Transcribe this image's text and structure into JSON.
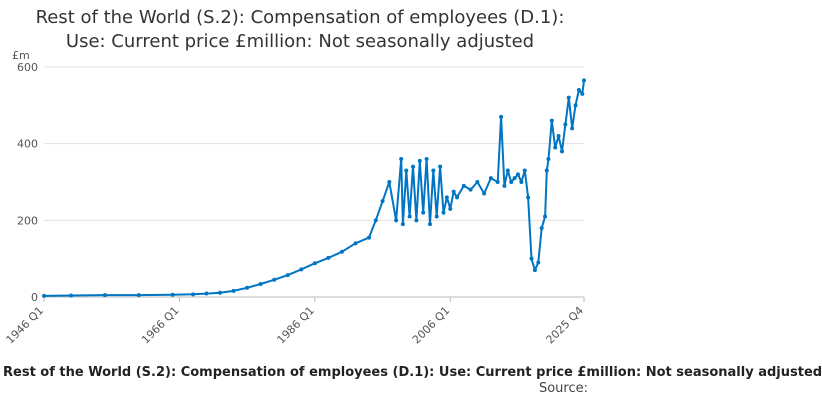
{
  "title_line1": "Rest of the World (S.2): Compensation of employees (D.1):",
  "title_line2": "Use: Current price £million: Not seasonally adjusted",
  "footer_text": "Rest of the World (S.2): Compensation of employees (D.1): Use: Current price £million: Not seasonally adjusted",
  "source_label": "Source:",
  "colors": {
    "series": "#0075c4",
    "grid": "#e0e0e0",
    "axis": "#555555"
  },
  "chart_data": {
    "type": "line",
    "title": "Rest of the World (S.2): Compensation of employees (D.1): Use: Current price £million: Not seasonally adjusted",
    "ylabel": "£m",
    "xlabel": "",
    "ylim": [
      0,
      600
    ],
    "xlim": [
      1946.0,
      2025.75
    ],
    "y_ticks": [
      0,
      200,
      400,
      600
    ],
    "x_ticks": [
      {
        "label": "1946 Q1",
        "value": 1946.0
      },
      {
        "label": "1966 Q1",
        "value": 1966.0
      },
      {
        "label": "1986 Q1",
        "value": 1986.0
      },
      {
        "label": "2006 Q1",
        "value": 2006.0
      },
      {
        "label": "2025 Q4",
        "value": 2025.75
      }
    ],
    "grid": true,
    "series": [
      {
        "name": "Compensation of employees (D.1), £m",
        "x": [
          1946,
          1950,
          1955,
          1960,
          1965,
          1968,
          1970,
          1972,
          1974,
          1976,
          1978,
          1980,
          1982,
          1984,
          1986,
          1988,
          1990,
          1992,
          1994,
          1995,
          1996,
          1997,
          1998,
          1998.75,
          1999,
          1999.5,
          2000,
          2000.5,
          2001,
          2001.5,
          2002,
          2002.5,
          2003,
          2003.5,
          2004,
          2004.5,
          2005,
          2005.5,
          2006,
          2006.5,
          2007,
          2008,
          2009,
          2010,
          2011,
          2012,
          2013,
          2013.5,
          2014,
          2014.5,
          2015,
          2015.5,
          2016,
          2016.5,
          2017,
          2017.5,
          2018,
          2018.5,
          2019,
          2019.5,
          2020,
          2020.25,
          2020.5,
          2021,
          2021.5,
          2022,
          2022.5,
          2023,
          2023.5,
          2024,
          2024.5,
          2025,
          2025.5,
          2025.75
        ],
        "y": [
          3,
          4,
          5,
          5,
          6,
          7,
          9,
          11,
          16,
          24,
          34,
          45,
          57,
          72,
          88,
          102,
          118,
          140,
          155,
          200,
          250,
          300,
          200,
          360,
          190,
          330,
          210,
          340,
          200,
          355,
          220,
          360,
          190,
          330,
          210,
          340,
          220,
          260,
          230,
          275,
          260,
          290,
          280,
          300,
          270,
          310,
          300,
          470,
          290,
          330,
          300,
          310,
          320,
          300,
          330,
          260,
          100,
          70,
          90,
          180,
          210,
          330,
          360,
          460,
          390,
          420,
          380,
          450,
          520,
          440,
          500,
          540,
          530,
          565
        ]
      }
    ]
  }
}
